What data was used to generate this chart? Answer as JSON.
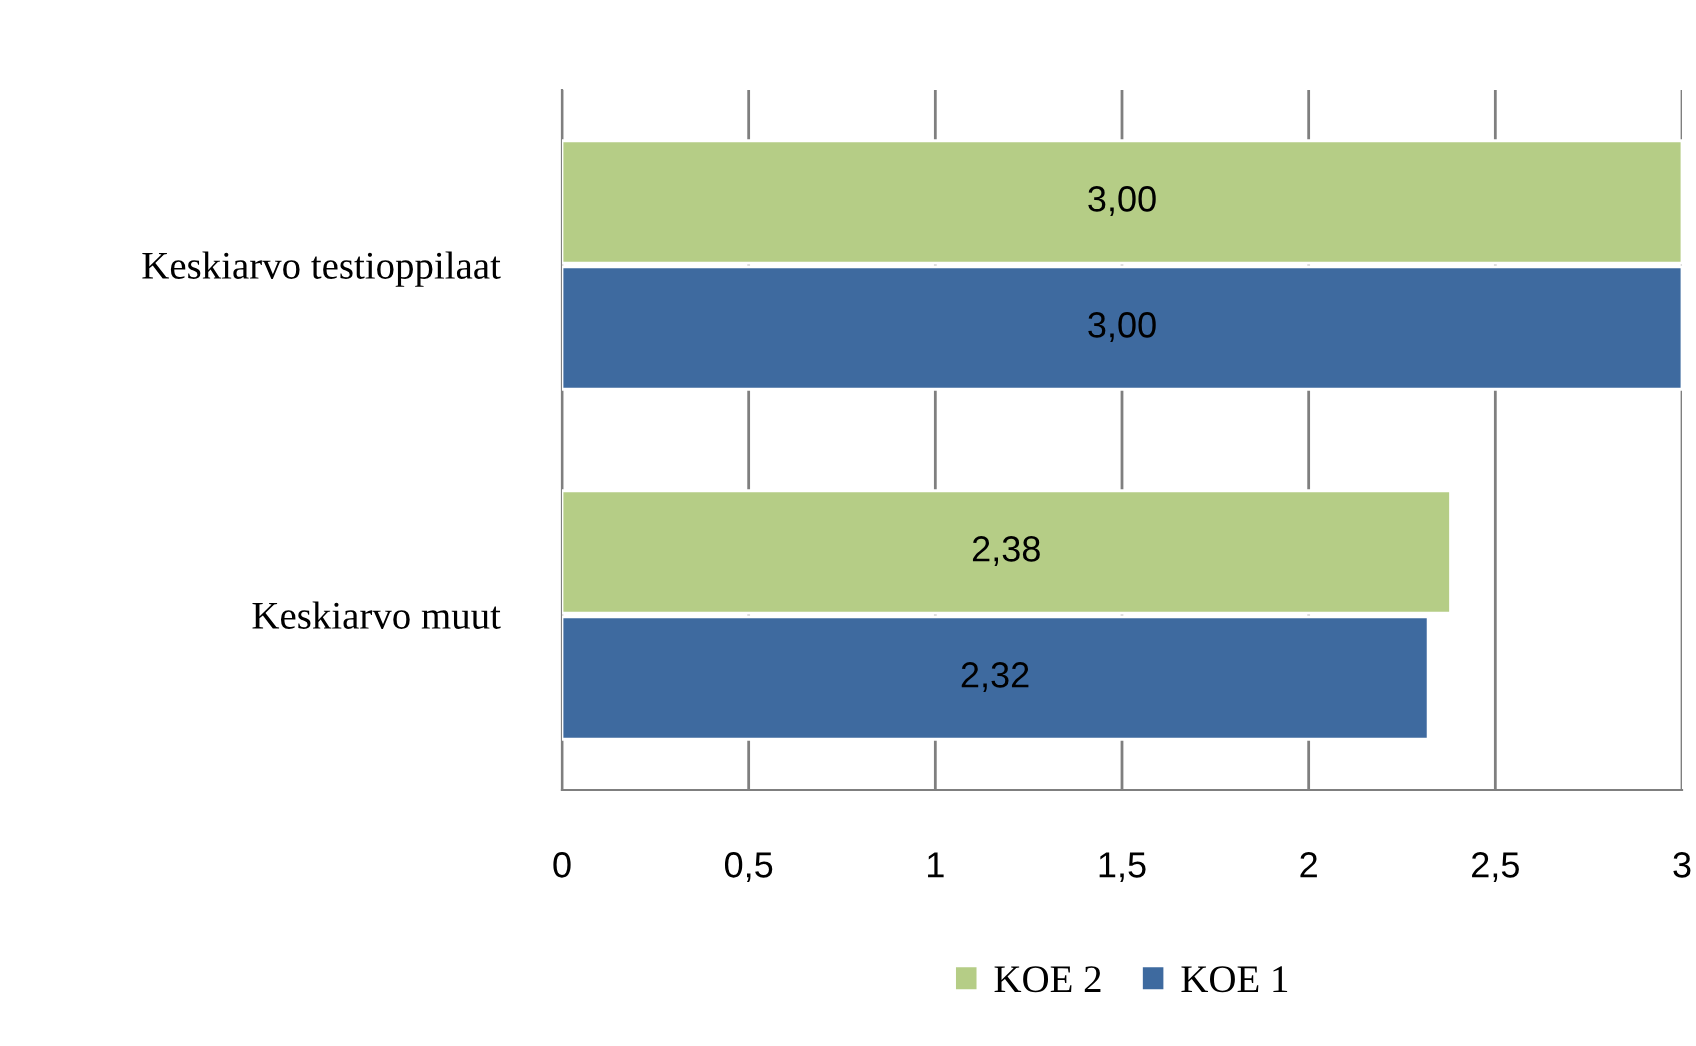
{
  "chart_data": {
    "type": "bar",
    "orientation": "horizontal",
    "categories": [
      "Keskiarvo testioppilaat",
      "Keskiarvo muut"
    ],
    "series": [
      {
        "name": "KOE 2",
        "color": "#b5cd86",
        "values": [
          3.0,
          2.38
        ],
        "value_labels": [
          "3,00",
          "2,38"
        ]
      },
      {
        "name": "KOE 1",
        "color": "#3e6a9f",
        "values": [
          3.0,
          2.32
        ],
        "value_labels": [
          "3,00",
          "2,32"
        ]
      }
    ],
    "xlim": [
      0,
      3
    ],
    "xticks": [
      0,
      {
        "value": 0.5,
        "label": "0,5"
      },
      1,
      {
        "value": 1.5,
        "label": "1,5"
      },
      2,
      {
        "value": 2.5,
        "label": "2,5"
      },
      3
    ],
    "grid": "x",
    "legend": "bottom"
  }
}
